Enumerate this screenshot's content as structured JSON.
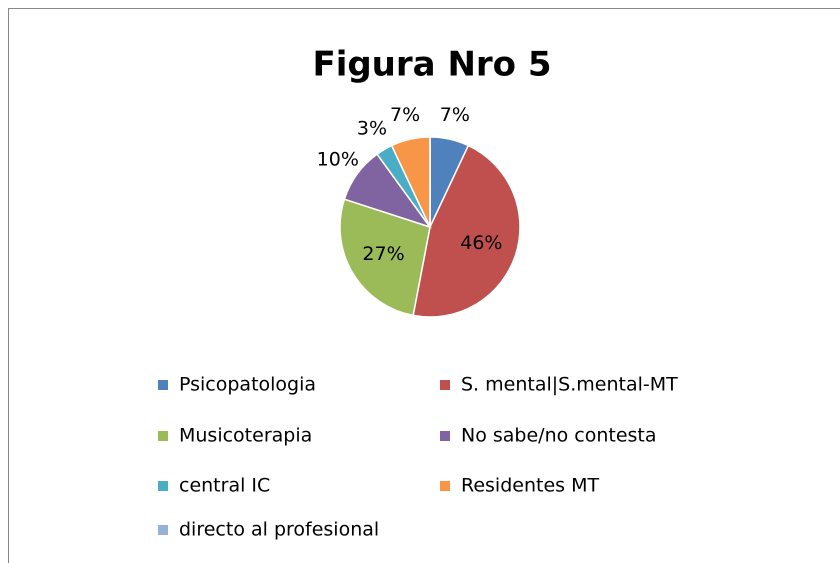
{
  "chart_data": {
    "type": "pie",
    "title": "Figura Nro 5",
    "categories": [
      "Psicopatologia",
      "S. mental|S.mental-MT",
      "Musicoterapia",
      "No sabe/no contesta",
      "central IC",
      "Residentes MT",
      "directo al profesional"
    ],
    "values": [
      7,
      46,
      27,
      10,
      3,
      7,
      0
    ],
    "value_labels": [
      "7%",
      "46%",
      "27%",
      "10%",
      "3%",
      "7%",
      null
    ],
    "colors": [
      "#4f81bd",
      "#c0504d",
      "#9bbb59",
      "#8064a2",
      "#4bacc6",
      "#f79646",
      "#95b3d7"
    ],
    "legend": "bottom"
  }
}
